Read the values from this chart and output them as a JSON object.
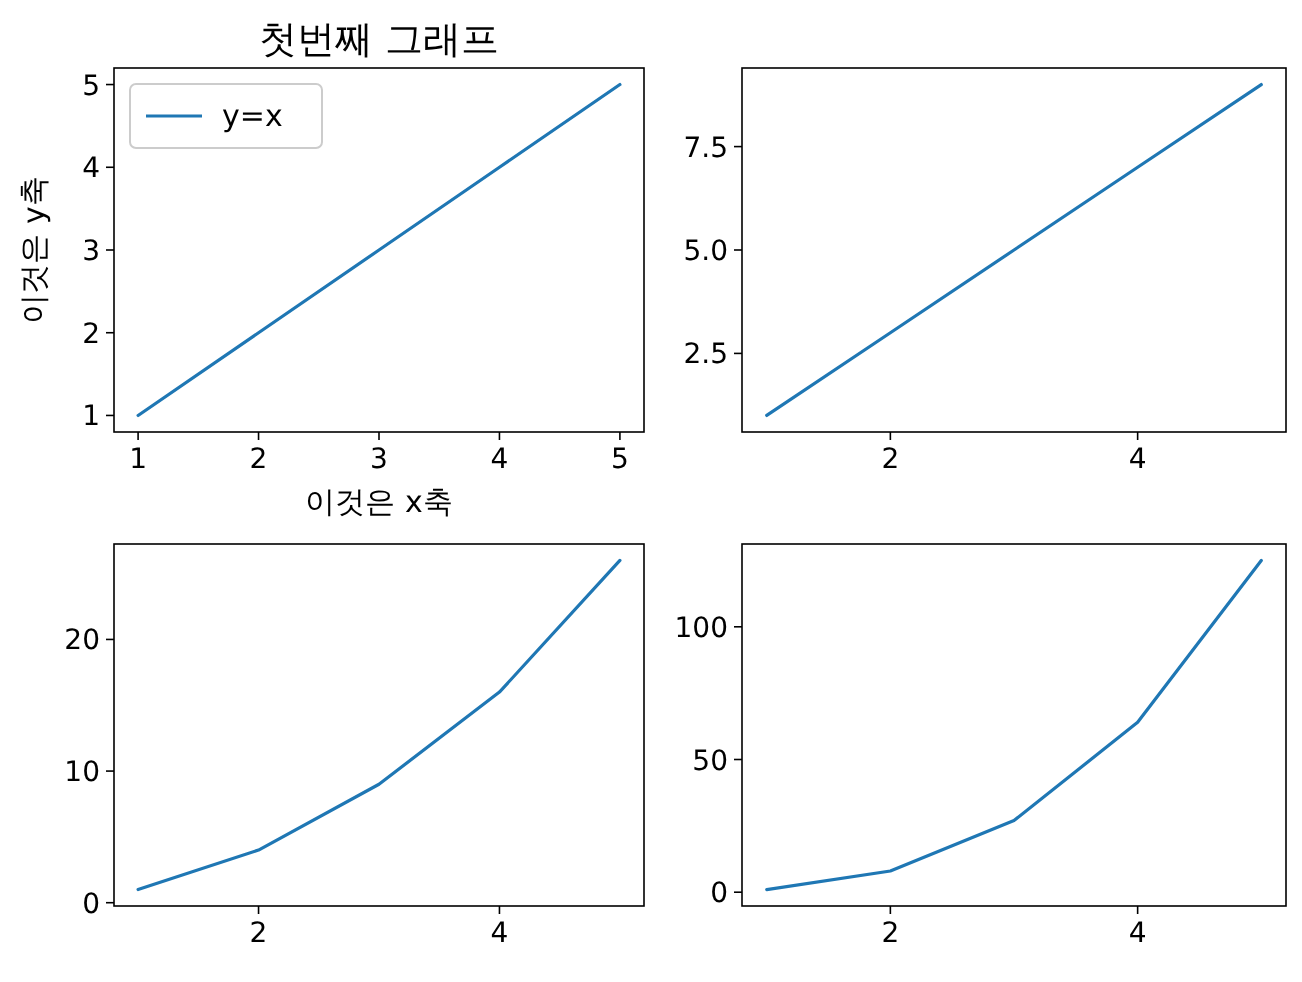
{
  "chart_data": [
    {
      "type": "line",
      "title": "첫번째 그래프",
      "xlabel": "이것은 x축",
      "ylabel": "이것은 y축",
      "x": [
        1,
        2,
        3,
        4,
        5
      ],
      "series": [
        {
          "name": "y=x",
          "color": "#1f77b4",
          "values": [
            1,
            2,
            3,
            4,
            5
          ]
        }
      ],
      "xlim": [
        0.8,
        5.2
      ],
      "ylim": [
        0.8,
        5.2
      ],
      "xticks": [
        1,
        2,
        3,
        4,
        5
      ],
      "yticks": [
        1,
        2,
        3,
        4,
        5
      ],
      "legend": "top left",
      "grid": false,
      "marker": "none",
      "line_style": "solid"
    },
    {
      "type": "line",
      "x": [
        1,
        2,
        3,
        4,
        5
      ],
      "series": [
        {
          "color": "#1f77b4",
          "values": [
            1,
            3,
            5,
            7,
            9
          ]
        }
      ],
      "xlim": [
        0.8,
        5.2
      ],
      "ylim": [
        0.6,
        9.4
      ],
      "xticks": [
        2,
        4
      ],
      "yticks": [
        {
          "value": 2.5,
          "label": "2.5"
        },
        {
          "value": 5,
          "label": "5.0"
        },
        {
          "value": 7.5,
          "label": "7.5"
        }
      ],
      "grid": false,
      "marker": "none",
      "line_style": "solid"
    },
    {
      "type": "line",
      "x": [
        1,
        2,
        3,
        4,
        5
      ],
      "series": [
        {
          "color": "#1f77b4",
          "values": [
            1,
            4,
            9,
            16,
            26
          ]
        }
      ],
      "xlim": [
        0.8,
        5.2
      ],
      "ylim": [
        -0.25,
        27.25
      ],
      "xticks": [
        2,
        4
      ],
      "yticks": [
        0,
        10,
        20
      ],
      "grid": false,
      "marker": "none",
      "line_style": "solid"
    },
    {
      "type": "line",
      "x": [
        1,
        2,
        3,
        4,
        5
      ],
      "series": [
        {
          "color": "#1f77b4",
          "values": [
            1,
            8,
            27,
            64,
            125
          ]
        }
      ],
      "xlim": [
        0.8,
        5.2
      ],
      "ylim": [
        -5.2,
        131.2
      ],
      "xticks": [
        2,
        4
      ],
      "yticks": [
        0,
        50,
        100
      ],
      "grid": false,
      "marker": "none",
      "line_style": "solid"
    }
  ]
}
